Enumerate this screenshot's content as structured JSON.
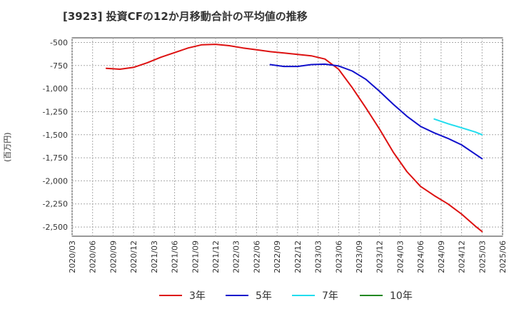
{
  "chart_data": {
    "type": "line",
    "title": "[3923]  投資CFの12か月移動合計の平均値の推移",
    "ylabel": "(百万円)",
    "xlabel": "",
    "ylim": [
      -2600,
      -450
    ],
    "yticks": [
      -500,
      -750,
      -1000,
      -1250,
      -1500,
      -1750,
      -2000,
      -2250,
      -2500
    ],
    "ytick_labels": [
      "-500",
      "-750",
      "-1,000",
      "-1,250",
      "-1,500",
      "-1,750",
      "-2,000",
      "-2,250",
      "-2,500"
    ],
    "xticks": [
      "2020/03",
      "2020/06",
      "2020/09",
      "2020/12",
      "2021/03",
      "2021/06",
      "2021/09",
      "2021/12",
      "2022/03",
      "2022/06",
      "2022/09",
      "2022/12",
      "2023/03",
      "2023/06",
      "2023/09",
      "2023/12",
      "2024/03",
      "2024/06",
      "2024/09",
      "2024/12",
      "2025/03",
      "2025/06"
    ],
    "grid": true,
    "legend_position": "bottom",
    "series": [
      {
        "name": "3年",
        "color": "#dd1111",
        "x": [
          "2020/08",
          "2020/10",
          "2020/12",
          "2021/02",
          "2021/04",
          "2021/06",
          "2021/08",
          "2021/10",
          "2021/12",
          "2022/02",
          "2022/04",
          "2022/06",
          "2022/08",
          "2022/10",
          "2022/12",
          "2023/02",
          "2023/04",
          "2023/06",
          "2023/08",
          "2023/10",
          "2023/12",
          "2024/02",
          "2024/04",
          "2024/06",
          "2024/08",
          "2024/10",
          "2024/12",
          "2025/02",
          "2025/03"
        ],
        "values": [
          -780,
          -790,
          -770,
          -720,
          -660,
          -610,
          -560,
          -525,
          -520,
          -535,
          -560,
          -580,
          -600,
          -615,
          -630,
          -645,
          -680,
          -790,
          -990,
          -1210,
          -1440,
          -1690,
          -1900,
          -2060,
          -2160,
          -2250,
          -2360,
          -2490,
          -2550
        ]
      },
      {
        "name": "5年",
        "color": "#1111cc",
        "x": [
          "2022/08",
          "2022/10",
          "2022/12",
          "2023/02",
          "2023/04",
          "2023/06",
          "2023/08",
          "2023/10",
          "2023/12",
          "2024/02",
          "2024/04",
          "2024/06",
          "2024/08",
          "2024/10",
          "2024/12",
          "2025/02",
          "2025/03"
        ],
        "values": [
          -740,
          -760,
          -760,
          -740,
          -735,
          -755,
          -810,
          -900,
          -1030,
          -1170,
          -1300,
          -1410,
          -1480,
          -1540,
          -1610,
          -1710,
          -1760
        ]
      },
      {
        "name": "7年",
        "color": "#22ddee",
        "x": [
          "2024/08",
          "2024/10",
          "2024/12",
          "2025/02",
          "2025/03"
        ],
        "values": [
          -1330,
          -1380,
          -1425,
          -1470,
          -1500
        ]
      },
      {
        "name": "10年",
        "color": "#228822",
        "x": [],
        "values": []
      }
    ]
  }
}
